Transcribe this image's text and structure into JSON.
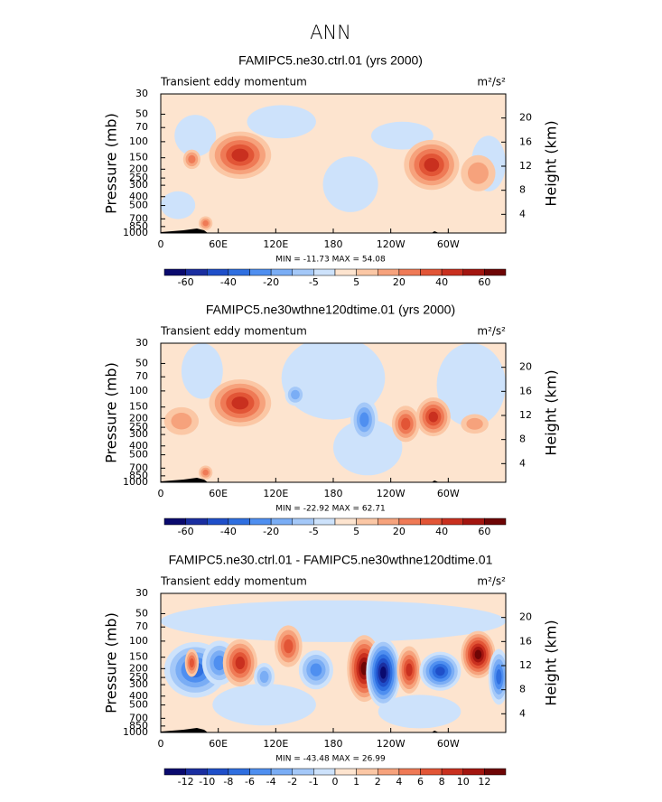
{
  "title": "ANN",
  "pressure_axis": {
    "range": [
      30,
      1000
    ],
    "log": true,
    "ticks": [
      30,
      50,
      70,
      100,
      150,
      200,
      250,
      300,
      400,
      500,
      700,
      850,
      1000
    ]
  },
  "height_axis": {
    "range": [
      0,
      24
    ],
    "ticks": [
      4,
      8,
      12,
      16,
      20
    ]
  },
  "longitude_axis": {
    "range": [
      0,
      360
    ],
    "ticks": [
      0,
      {
        "value": 60,
        "label": "60E"
      },
      {
        "value": 120,
        "label": "120E"
      },
      180,
      {
        "value": 240,
        "label": "120W"
      },
      {
        "value": 300,
        "label": "60W"
      }
    ]
  },
  "panels": [
    {
      "title": "FAMIPC5.ne30.ctrl.01 (yrs 2000)",
      "left_string": "Transient eddy momentum",
      "units": "m²/s²",
      "y_label": "Pressure (mb)",
      "y2_label": "Height (km)",
      "stats": "MIN = -11.73   MAX = 54.08",
      "colorbar": {
        "colors": [
          "#0a0a6e",
          "#1a2ea0",
          "#1f4fc9",
          "#2f6fe0",
          "#4f8ff0",
          "#7aadf5",
          "#a4c8f8",
          "#cde2fb",
          "#fde4cf",
          "#fbc7a5",
          "#f6a27c",
          "#ef7a56",
          "#e25536",
          "#c9301f",
          "#a3150f",
          "#6e0505"
        ],
        "labels": [
          -60,
          -40,
          -20,
          -5,
          5,
          20,
          40,
          60
        ]
      }
    },
    {
      "title": "FAMIPC5.ne30wthne120dtime.01 (yrs 2000)",
      "left_string": "Transient eddy momentum",
      "units": "m²/s²",
      "y_label": "Pressure (mb)",
      "y2_label": "Height (km)",
      "stats": "MIN = -22.92   MAX = 62.71",
      "colorbar": {
        "colors": [
          "#0a0a6e",
          "#1a2ea0",
          "#1f4fc9",
          "#2f6fe0",
          "#4f8ff0",
          "#7aadf5",
          "#a4c8f8",
          "#cde2fb",
          "#fde4cf",
          "#fbc7a5",
          "#f6a27c",
          "#ef7a56",
          "#e25536",
          "#c9301f",
          "#a3150f",
          "#6e0505"
        ],
        "labels": [
          -60,
          -40,
          -20,
          -5,
          5,
          20,
          40,
          60
        ]
      }
    },
    {
      "title": "FAMIPC5.ne30.ctrl.01 - FAMIPC5.ne30wthne120dtime.01",
      "left_string": "Transient eddy momentum",
      "units": "m²/s²",
      "y_label": "Pressure (mb)",
      "y2_label": "Height (km)",
      "stats": "MIN = -43.48   MAX = 26.99",
      "colorbar": {
        "colors": [
          "#0a0a6e",
          "#1a2ea0",
          "#1f4fc9",
          "#2f6fe0",
          "#4f8ff0",
          "#7aadf5",
          "#a4c8f8",
          "#cde2fb",
          "#fde4cf",
          "#fbc7a5",
          "#f6a27c",
          "#ef7a56",
          "#e25536",
          "#c9301f",
          "#a3150f",
          "#6e0505"
        ],
        "labels": [
          -12,
          -10,
          -8,
          -6,
          -4,
          -2,
          -1,
          0,
          1,
          2,
          4,
          6,
          8,
          10,
          12
        ]
      }
    }
  ]
}
